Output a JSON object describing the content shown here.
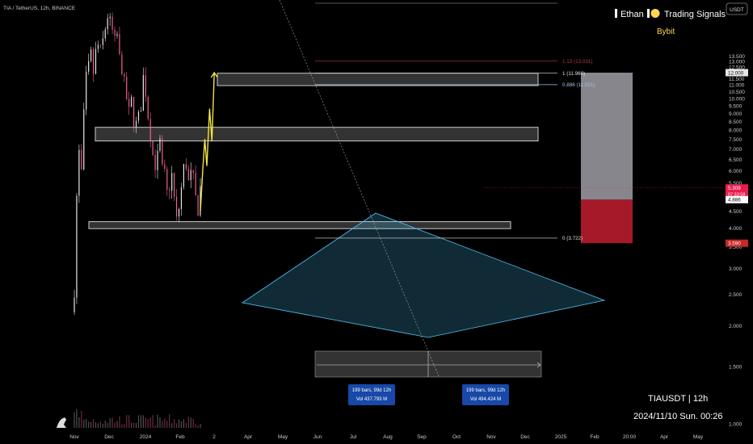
{
  "symbol_label": "TIA / TetherUS, 12h, BINANCE",
  "currency_badge": "USDT",
  "brand": {
    "name": "Ethan",
    "subtitle": "Trading Signals",
    "exchange": "Bybit"
  },
  "footer": {
    "pair": "TIAUSDT | 12h",
    "datetime": "2024/11/10 Sun. 00:26"
  },
  "colors": {
    "up": "#e8e8ec",
    "down": "#f06292",
    "triangle": "#4fc3f7",
    "projection": "#f5e642",
    "stop": "#b71c2c",
    "target": "#9e9ea4",
    "accent": "#ffd54f"
  },
  "chart_data": {
    "type": "candlestick",
    "y_scale": "log",
    "ylim": [
      0.95,
      16
    ],
    "y_ticks": [
      "13.500",
      "13.000",
      "12.500",
      "12.000",
      "11.500",
      "11.000",
      "10.500",
      "10.000",
      "9.500",
      "9.000",
      "8.500",
      "8.000",
      "7.500",
      "7.000",
      "6.500",
      "6.000",
      "5.500",
      "5.000",
      "4.500",
      "4.000",
      "3.500",
      "3.000",
      "2.500",
      "2.000",
      "1.500",
      "1.000"
    ],
    "x_ticks": [
      "Nov",
      "Dec",
      "2024",
      "Feb",
      "2",
      "Apr",
      "May",
      "Jun",
      "Jul",
      "Aug",
      "Sep",
      "Oct",
      "Nov",
      "Dec",
      "2025",
      "Feb",
      "20:00",
      "Apr",
      "May"
    ],
    "price_path": [
      {
        "date": "2023-11-01",
        "close": 2.2
      },
      {
        "date": "2023-11-08",
        "close": 2.6
      },
      {
        "date": "2023-11-15",
        "close": 5.0
      },
      {
        "date": "2023-11-22",
        "close": 6.8
      },
      {
        "date": "2023-11-29",
        "close": 5.9
      },
      {
        "date": "2023-12-06",
        "close": 8.8
      },
      {
        "date": "2023-12-13",
        "close": 11.5
      },
      {
        "date": "2023-12-20",
        "close": 12.4
      },
      {
        "date": "2023-12-27",
        "close": 13.6
      },
      {
        "date": "2024-01-03",
        "close": 12.0
      },
      {
        "date": "2024-01-10",
        "close": 13.8
      },
      {
        "date": "2024-01-17",
        "close": 14.5
      },
      {
        "date": "2024-01-24",
        "close": 13.9
      },
      {
        "date": "2024-01-31",
        "close": 15.0
      },
      {
        "date": "2024-02-07",
        "close": 16.5
      },
      {
        "date": "2024-02-14",
        "close": 18.0
      },
      {
        "date": "2024-02-21",
        "close": 17.0
      },
      {
        "date": "2024-02-28",
        "close": 16.0
      },
      {
        "date": "2024-03-06",
        "close": 14.8
      },
      {
        "date": "2024-03-13",
        "close": 15.6
      },
      {
        "date": "2024-03-20",
        "close": 13.2
      },
      {
        "date": "2024-03-27",
        "close": 12.5
      },
      {
        "date": "2024-04-03",
        "close": 11.0
      },
      {
        "date": "2024-04-10",
        "close": 10.0
      },
      {
        "date": "2024-04-17",
        "close": 9.0
      },
      {
        "date": "2024-04-24",
        "close": 9.8
      },
      {
        "date": "2024-05-01",
        "close": 8.6
      },
      {
        "date": "2024-05-08",
        "close": 8.3
      },
      {
        "date": "2024-05-15",
        "close": 8.7
      },
      {
        "date": "2024-05-22",
        "close": 9.6
      },
      {
        "date": "2024-05-29",
        "close": 11.6
      },
      {
        "date": "2024-06-05",
        "close": 10.5
      },
      {
        "date": "2024-06-12",
        "close": 8.9
      },
      {
        "date": "2024-06-19",
        "close": 7.8
      },
      {
        "date": "2024-06-26",
        "close": 6.7
      },
      {
        "date": "2024-07-03",
        "close": 6.3
      },
      {
        "date": "2024-07-10",
        "close": 6.6
      },
      {
        "date": "2024-07-17",
        "close": 7.3
      },
      {
        "date": "2024-07-24",
        "close": 6.0
      },
      {
        "date": "2024-07-31",
        "close": 5.8
      },
      {
        "date": "2024-08-07",
        "close": 5.1
      },
      {
        "date": "2024-08-14",
        "close": 5.4
      },
      {
        "date": "2024-08-21",
        "close": 5.8
      },
      {
        "date": "2024-08-28",
        "close": 4.9
      },
      {
        "date": "2024-09-04",
        "close": 4.2
      },
      {
        "date": "2024-09-11",
        "close": 4.6
      },
      {
        "date": "2024-09-18",
        "close": 5.3
      },
      {
        "date": "2024-09-25",
        "close": 6.1
      },
      {
        "date": "2024-10-02",
        "close": 6.3
      },
      {
        "date": "2024-10-09",
        "close": 5.5
      },
      {
        "date": "2024-10-16",
        "close": 5.8
      },
      {
        "date": "2024-10-23",
        "close": 5.6
      },
      {
        "date": "2024-10-30",
        "close": 4.9
      },
      {
        "date": "2024-11-06",
        "close": 4.6
      },
      {
        "date": "2024-11-10",
        "close": 5.309
      }
    ],
    "fib_levels": [
      {
        "label": "1.13 (13.031)",
        "value": 13.031
      },
      {
        "label": "1 (11.960)",
        "value": 11.96
      },
      {
        "label": "0.886 (11.021)",
        "value": 11.021
      },
      {
        "label": "0 (3.722)",
        "value": 3.722
      }
    ],
    "zones": [
      {
        "name": "resistance-high",
        "low": 10.95,
        "high": 11.95
      },
      {
        "name": "resistance-mid",
        "low": 7.4,
        "high": 8.15
      },
      {
        "name": "support",
        "low": 3.98,
        "high": 4.18
      }
    ],
    "price_labels": [
      {
        "text": "12.000",
        "value": 12.0,
        "kind": "target"
      },
      {
        "text": "5.309",
        "sub": "07:33:58",
        "value": 5.309,
        "kind": "current"
      },
      {
        "text": "4.886",
        "value": 4.886,
        "kind": "entry"
      },
      {
        "text": "3.590",
        "value": 3.59,
        "kind": "stop"
      }
    ],
    "projection_path": [
      {
        "date": "2024-11-06",
        "value": 4.5
      },
      {
        "date": "2024-11-13",
        "value": 6.0
      },
      {
        "date": "2024-11-19",
        "value": 7.5
      },
      {
        "date": "2024-11-25",
        "value": 6.2
      },
      {
        "date": "2024-12-03",
        "value": 9.3
      },
      {
        "date": "2024-12-10",
        "value": 7.4
      },
      {
        "date": "2024-12-17",
        "value": 12.0
      }
    ],
    "range_labels": [
      {
        "bars": "199 bars, 99d 12h",
        "vol": "Vol 437.793 M"
      },
      {
        "bars": "199 bars, 99d 12h",
        "vol": "Vol 494.424 M"
      }
    ]
  }
}
